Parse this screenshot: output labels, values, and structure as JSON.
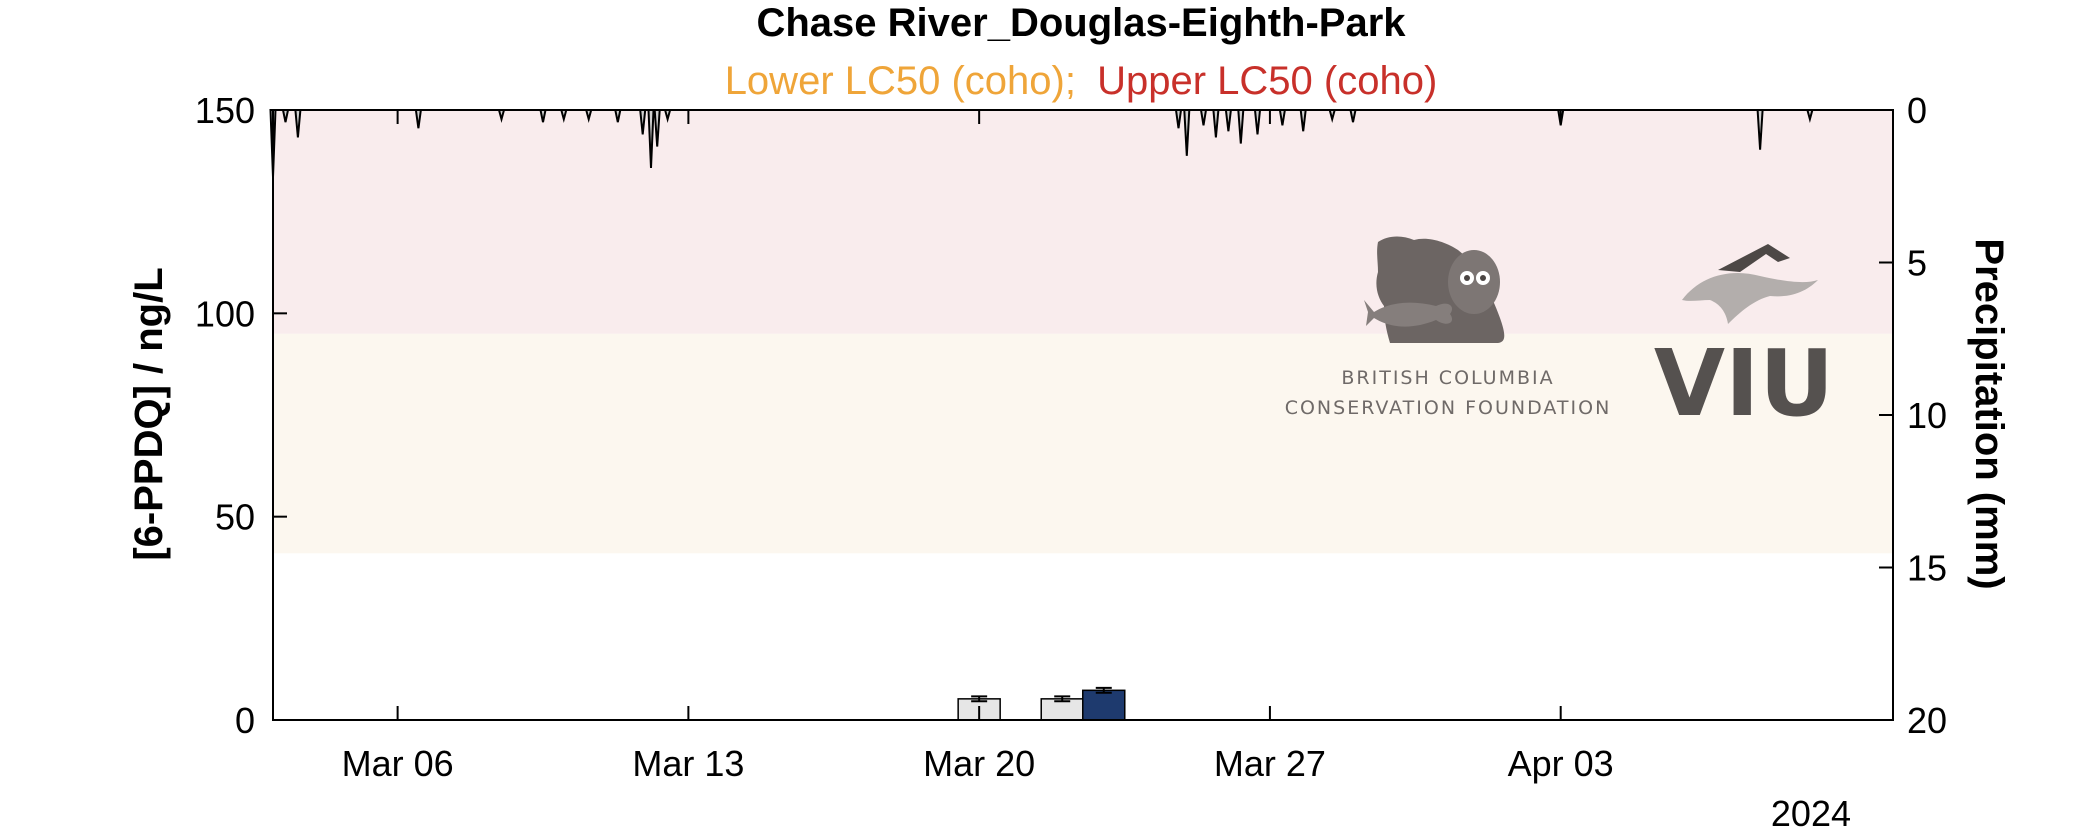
{
  "chart_data": {
    "type": "bar",
    "title": "Chase River_Douglas-Eighth-Park",
    "subtitle_lower": "Lower LC50 (coho);",
    "subtitle_upper": "Upper LC50 (coho)",
    "ylabel": "[6-PPDQ] / ng/L",
    "ylabel_right": "Precipitation (mm)",
    "year_label": "2024",
    "ylim": [
      0,
      150
    ],
    "ylim_right": [
      0,
      20
    ],
    "right_axis_inverted": true,
    "xlim": [
      "2024-03-03",
      "2024-04-11"
    ],
    "x_ticks": [
      {
        "date": "2024-03-06",
        "label": "Mar 06"
      },
      {
        "date": "2024-03-13",
        "label": "Mar 13"
      },
      {
        "date": "2024-03-20",
        "label": "Mar 20"
      },
      {
        "date": "2024-03-27",
        "label": "Mar 27"
      },
      {
        "date": "2024-04-03",
        "label": "Apr 03"
      }
    ],
    "y_ticks": [
      0,
      50,
      100,
      150
    ],
    "y_ticks_right": [
      0,
      5,
      10,
      15,
      20
    ],
    "bands": [
      {
        "name": "Lower LC50 (coho)",
        "from": 41,
        "to": 95,
        "color": "#fcf7ef"
      },
      {
        "name": "Upper LC50 (coho)",
        "from": 95,
        "to": 150,
        "color": "#f9eced"
      }
    ],
    "bars": [
      {
        "date": "2024-03-20",
        "value": 5.2,
        "error": 0.6,
        "color": "#e6e6e6"
      },
      {
        "date": "2024-03-22",
        "value": 5.2,
        "error": 0.6,
        "color": "#e6e6e6"
      },
      {
        "date": "2024-03-23",
        "value": 7.3,
        "error": 0.6,
        "color": "#1e3a6e"
      }
    ],
    "precipitation": [
      {
        "date": "2024-03-03",
        "value": 2.2
      },
      {
        "date": "2024-03-03.3",
        "value": 0.4
      },
      {
        "date": "2024-03-03.6",
        "value": 0.9
      },
      {
        "date": "2024-03-06.5",
        "value": 0.6
      },
      {
        "date": "2024-03-08.5",
        "value": 0.3
      },
      {
        "date": "2024-03-09.5",
        "value": 0.4
      },
      {
        "date": "2024-03-10",
        "value": 0.3
      },
      {
        "date": "2024-03-10.6",
        "value": 0.3
      },
      {
        "date": "2024-03-11.3",
        "value": 0.4
      },
      {
        "date": "2024-03-11.9",
        "value": 0.8
      },
      {
        "date": "2024-03-12.1",
        "value": 1.9
      },
      {
        "date": "2024-03-12.25",
        "value": 1.2
      },
      {
        "date": "2024-03-12.5",
        "value": 0.3
      },
      {
        "date": "2024-03-24.8",
        "value": 0.6
      },
      {
        "date": "2024-03-25",
        "value": 1.5
      },
      {
        "date": "2024-03-25.4",
        "value": 0.5
      },
      {
        "date": "2024-03-25.7",
        "value": 0.9
      },
      {
        "date": "2024-03-26",
        "value": 0.7
      },
      {
        "date": "2024-03-26.3",
        "value": 1.1
      },
      {
        "date": "2024-03-26.7",
        "value": 0.8
      },
      {
        "date": "2024-03-27.3",
        "value": 0.5
      },
      {
        "date": "2024-03-27.8",
        "value": 0.7
      },
      {
        "date": "2024-03-28.5",
        "value": 0.3
      },
      {
        "date": "2024-03-29",
        "value": 0.4
      },
      {
        "date": "2024-04-03",
        "value": 0.5
      },
      {
        "date": "2024-04-07.8",
        "value": 1.3
      },
      {
        "date": "2024-04-09",
        "value": 0.3
      }
    ],
    "legend": "none",
    "grid": false
  },
  "logos": {
    "bccf_line1": "BRITISH COLUMBIA",
    "bccf_line2": "CONSERVATION FOUNDATION",
    "viu": "VIU"
  },
  "colors": {
    "lower_lc50": "#efa539",
    "upper_lc50": "#c8302a",
    "bar_light": "#e6e6e6",
    "bar_dark": "#1e3a6e"
  }
}
